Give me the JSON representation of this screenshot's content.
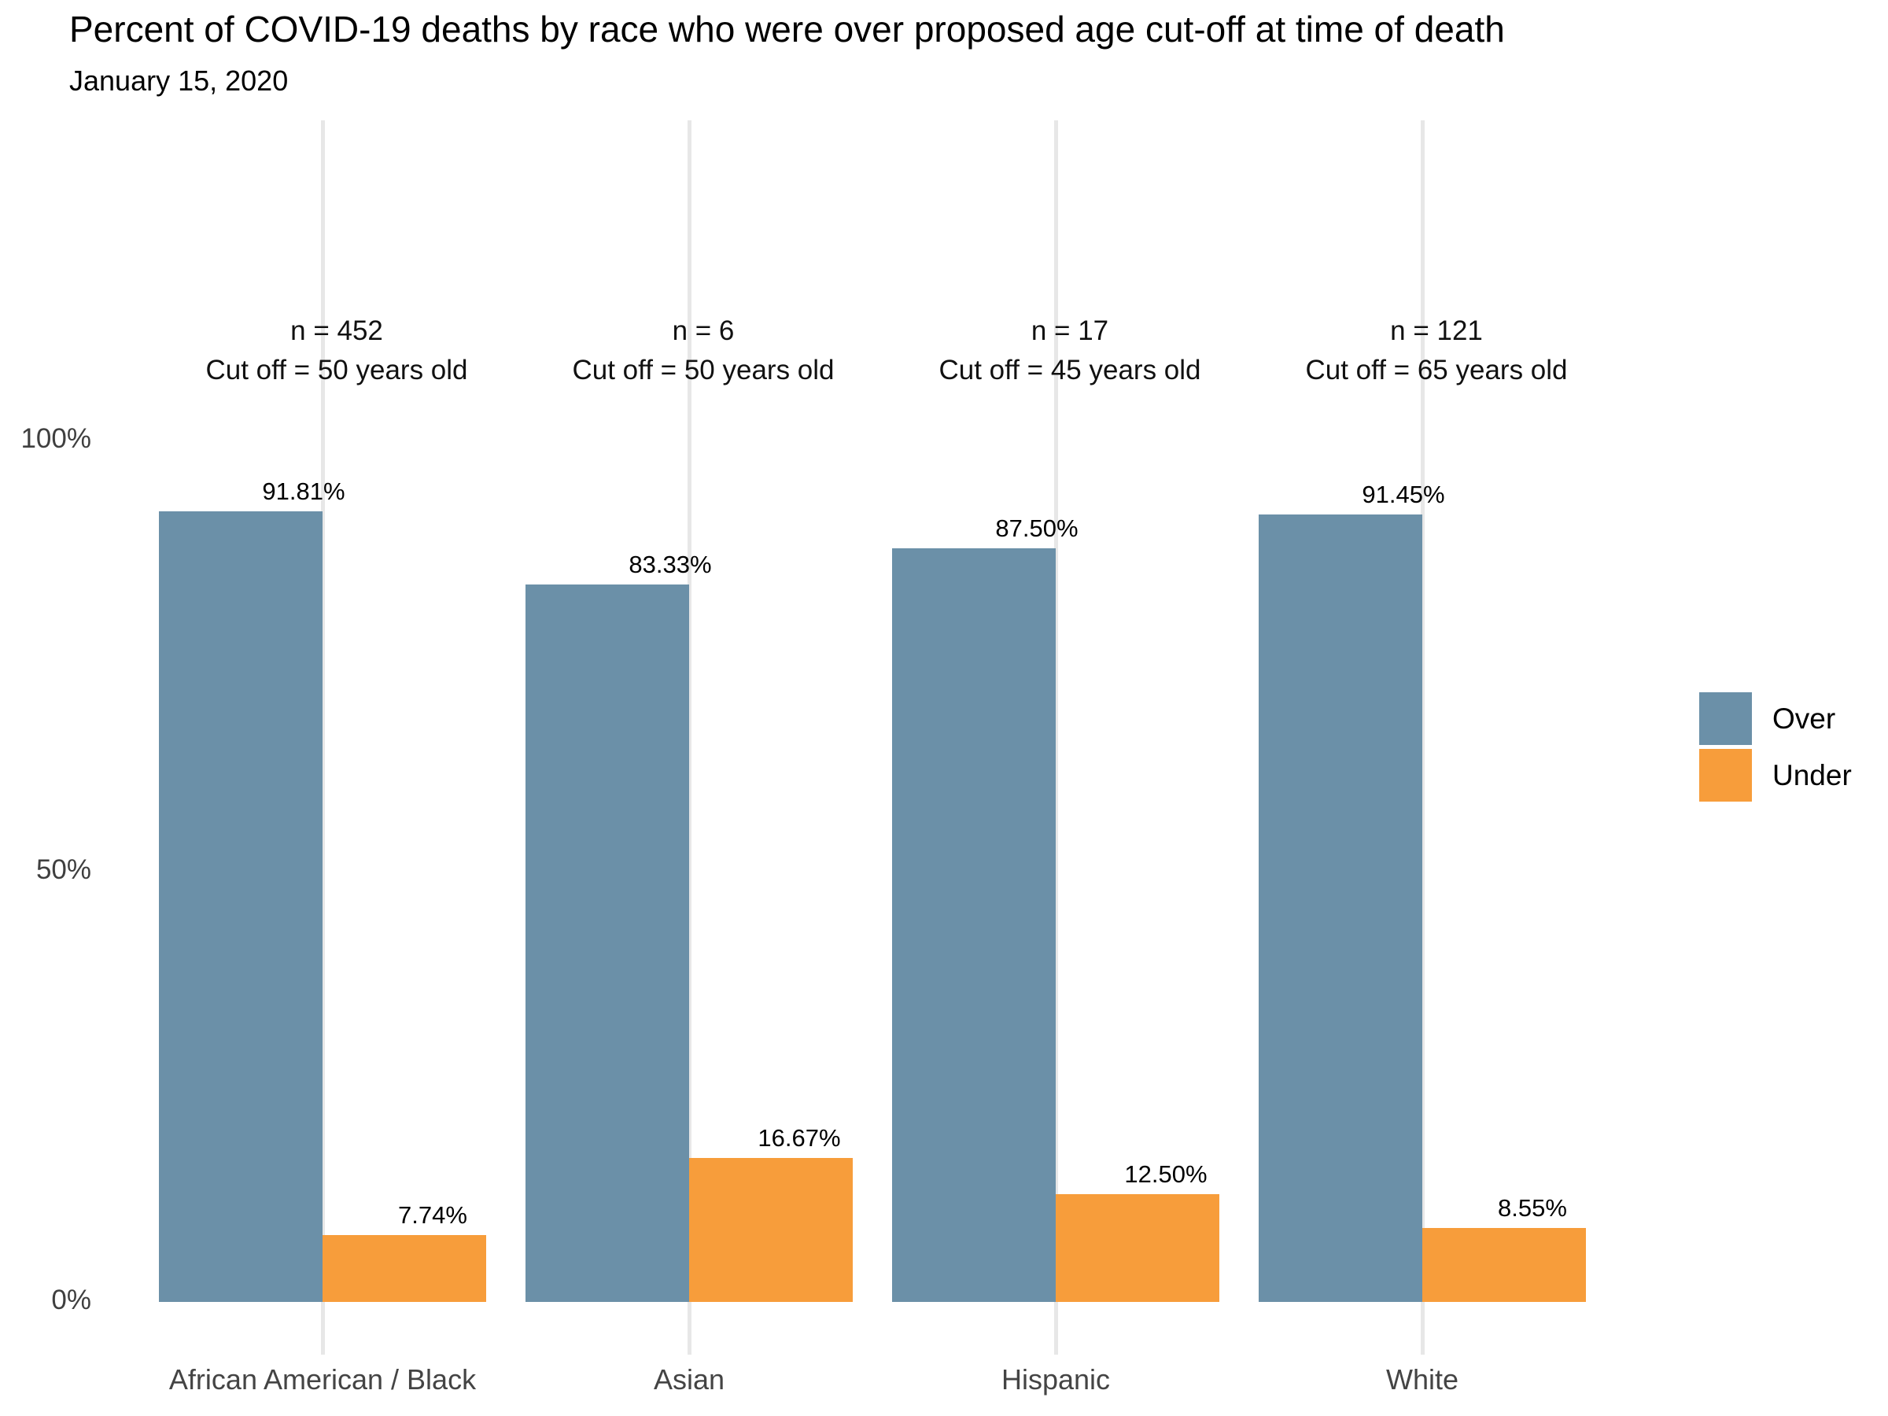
{
  "chart_data": {
    "type": "bar",
    "title": "Percent of COVID-19 deaths by race who were over proposed age cut-off at time of death",
    "subtitle": "January 15, 2020",
    "categories": [
      "African American / Black",
      "Asian",
      "Hispanic",
      "White"
    ],
    "series": [
      {
        "name": "Over",
        "color": "#6b90a8",
        "values": [
          91.81,
          83.33,
          87.5,
          91.45
        ],
        "labels": [
          "91.81%",
          "83.33%",
          "87.50%",
          "91.45%"
        ]
      },
      {
        "name": "Under",
        "color": "#f79d3b",
        "values": [
          7.74,
          16.67,
          12.5,
          8.55
        ],
        "labels": [
          "7.74%",
          "16.67%",
          "12.50%",
          "8.55%"
        ]
      }
    ],
    "annotations": [
      {
        "n": "n = 452",
        "cutoff": "Cut off = 50 years old"
      },
      {
        "n": "n = 6",
        "cutoff": "Cut off = 50 years old"
      },
      {
        "n": "n = 17",
        "cutoff": "Cut off = 45 years old"
      },
      {
        "n": "n = 121",
        "cutoff": "Cut off = 65 years old"
      }
    ],
    "y_axis": {
      "ticks": [
        {
          "label": "0%",
          "value": 0
        },
        {
          "label": "50%",
          "value": 50
        },
        {
          "label": "100%",
          "value": 100
        }
      ],
      "ylim": [
        0,
        137
      ]
    },
    "xlabel": "",
    "ylabel": "",
    "grid": "vertical-only",
    "legend": {
      "position": "right",
      "entries": [
        {
          "label": "Over",
          "color": "#6b90a8"
        },
        {
          "label": "Under",
          "color": "#f79d3b"
        }
      ]
    }
  }
}
